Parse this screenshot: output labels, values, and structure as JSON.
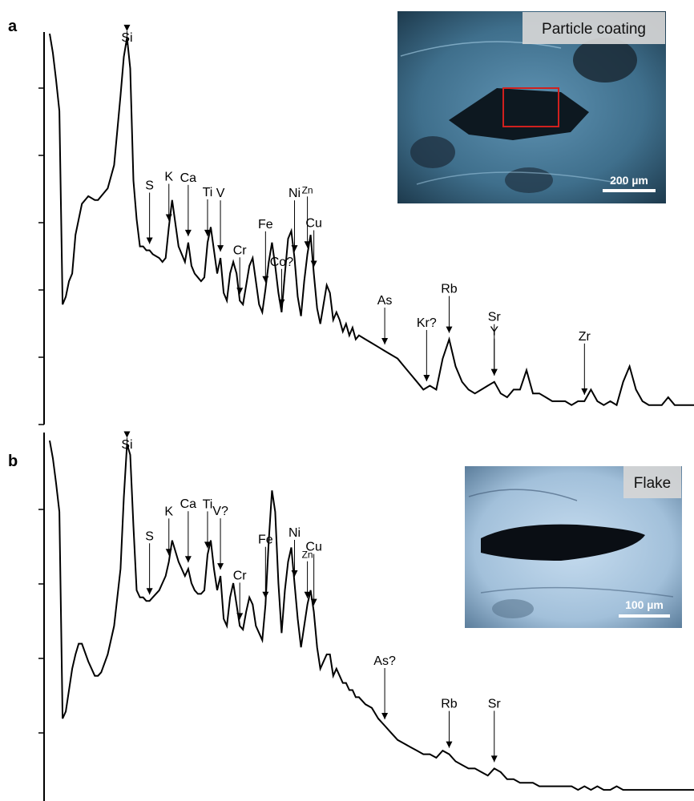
{
  "panels": {
    "a": {
      "letter": "a",
      "inset_title": "Particle coating",
      "scale_bar": "200 µm"
    },
    "b": {
      "letter": "b",
      "inset_title": "Flake",
      "scale_bar": "100 µm"
    }
  },
  "colors": {
    "spectrum": "#000000",
    "selection_box": "#d0201e",
    "inset_a_background": "#3f6f8c",
    "inset_b_background": "#a9c7e0",
    "label_box": "#d6d6d6"
  },
  "chart_data": [
    {
      "type": "line",
      "panel": "a",
      "title": "",
      "xlabel": "",
      "ylabel": "",
      "x_range": [
        0,
        100
      ],
      "y_range": [
        0,
        100
      ],
      "grid": false,
      "y_tick_marks": 6,
      "series": [
        {
          "x": [
            0,
            0.5,
            1,
            1.5,
            2,
            2.5,
            3,
            3.5,
            4,
            4.5,
            5,
            6,
            7,
            7.5,
            8,
            9,
            10,
            11,
            11.5,
            12,
            12.5,
            13,
            13.5,
            14,
            14.5,
            15,
            15.5,
            16,
            17,
            17.5,
            18,
            18.5,
            19,
            20,
            21,
            21.5,
            22,
            22.5,
            23,
            23.5,
            24,
            24.5,
            25,
            25.5,
            26,
            26.5,
            27,
            27.5,
            28,
            28.5,
            29,
            29.5,
            30,
            30.5,
            31,
            31.5,
            32,
            32.5,
            33,
            33.5,
            34,
            34.5,
            35,
            35.5,
            36,
            36.5,
            37,
            37.5,
            38,
            38.5,
            39,
            39.5,
            40,
            40.5,
            41,
            41.5,
            42,
            42.5,
            43,
            43.5,
            44,
            44.5,
            45,
            45.5,
            46,
            46.5,
            47,
            47.5,
            48,
            49,
            50,
            51,
            52,
            53,
            54,
            55,
            56,
            57,
            58,
            59,
            60,
            61,
            62,
            63,
            64,
            65,
            66,
            67,
            68,
            69,
            70,
            71,
            72,
            73,
            74,
            75,
            76,
            77,
            78,
            79,
            80,
            81,
            82,
            83,
            84,
            85,
            86,
            87,
            88,
            89,
            90,
            91,
            92,
            93,
            94,
            95,
            96,
            97,
            98,
            99,
            100
          ],
          "y": [
            100,
            95,
            88,
            80,
            30,
            32,
            36,
            38,
            48,
            52,
            56,
            58,
            57,
            57,
            58,
            60,
            66,
            84,
            94,
            99,
            91,
            62,
            52,
            45,
            45,
            44,
            44,
            43,
            42,
            41,
            42,
            50,
            57,
            45,
            41,
            46,
            40,
            38,
            37,
            36,
            37,
            46,
            50,
            44,
            38,
            42,
            33,
            31,
            38,
            41,
            38,
            31,
            30,
            35,
            40,
            42,
            36,
            30,
            28,
            34,
            41,
            46,
            40,
            33,
            28,
            38,
            47,
            49,
            42,
            32,
            27,
            36,
            43,
            48,
            38,
            29,
            25,
            30,
            35,
            33,
            26,
            28,
            26,
            23,
            25,
            22,
            24,
            21,
            22,
            21,
            20,
            19,
            18,
            17,
            16,
            14,
            12,
            10,
            8,
            9,
            8,
            16,
            21,
            14,
            10,
            8,
            7,
            8,
            9,
            10,
            7,
            6,
            8,
            8,
            13,
            7,
            7,
            6,
            5,
            5,
            5,
            4,
            5,
            5,
            8,
            5,
            4,
            5,
            4,
            10,
            14,
            8,
            5,
            4,
            4,
            4,
            6,
            4,
            4,
            4,
            4
          ]
        }
      ],
      "annotations": [
        {
          "label": "Si",
          "x": 12.0
        },
        {
          "label": "S",
          "x": 15.5
        },
        {
          "label": "K",
          "x": 18.5
        },
        {
          "label": "Ca",
          "x": 21.5
        },
        {
          "label": "Ti",
          "x": 24.5
        },
        {
          "label": "V",
          "x": 26.5
        },
        {
          "label": "Cr",
          "x": 29.5
        },
        {
          "label": "Fe",
          "x": 33.5
        },
        {
          "label": "Co?",
          "x": 36.0
        },
        {
          "label": "Ni",
          "x": 38.0
        },
        {
          "label": "Cu",
          "x": 41.0
        },
        {
          "label": "Zn",
          "x": 40.0
        },
        {
          "label": "As",
          "x": 52.0
        },
        {
          "label": "Kr?",
          "x": 58.5
        },
        {
          "label": "Rb",
          "x": 62.0
        },
        {
          "label": "Sr",
          "x": 69.0
        },
        {
          "label": "Y",
          "x": 69.0
        },
        {
          "label": "Zr",
          "x": 83.0
        }
      ]
    },
    {
      "type": "line",
      "panel": "b",
      "title": "",
      "xlabel": "",
      "ylabel": "",
      "x_range": [
        0,
        100
      ],
      "y_range": [
        0,
        100
      ],
      "grid": false,
      "y_tick_marks": 5,
      "series": [
        {
          "x": [
            0,
            0.5,
            1,
            1.5,
            2,
            2.5,
            3,
            3.5,
            4,
            4.5,
            5,
            6,
            7,
            7.5,
            8,
            9,
            10,
            11,
            11.5,
            12,
            12.5,
            13,
            13.5,
            14,
            14.5,
            15,
            15.5,
            16,
            17,
            17.5,
            18,
            18.5,
            19,
            20,
            21,
            21.5,
            22,
            22.5,
            23,
            23.5,
            24,
            24.5,
            25,
            25.5,
            26,
            26.5,
            27,
            27.5,
            28,
            28.5,
            29,
            29.5,
            30,
            30.5,
            31,
            31.5,
            32,
            32.5,
            33,
            33.5,
            34,
            34.5,
            35,
            35.5,
            36,
            36.5,
            37,
            37.5,
            38,
            38.5,
            39,
            39.5,
            40,
            40.5,
            41,
            41.5,
            42,
            42.5,
            43,
            43.5,
            44,
            44.5,
            45,
            45.5,
            46,
            46.5,
            47,
            47.5,
            48,
            49,
            50,
            51,
            52,
            53,
            54,
            55,
            56,
            57,
            58,
            59,
            60,
            61,
            62,
            63,
            64,
            65,
            66,
            67,
            68,
            69,
            70,
            71,
            72,
            73,
            74,
            75,
            76,
            77,
            78,
            79,
            80,
            81,
            82,
            83,
            84,
            85,
            86,
            87,
            88,
            89,
            90,
            91,
            92,
            93,
            94,
            95,
            96,
            97,
            98,
            99,
            100
          ],
          "y": [
            100,
            95,
            88,
            80,
            22,
            24,
            30,
            36,
            40,
            43,
            43,
            38,
            34,
            34,
            35,
            40,
            48,
            64,
            84,
            99,
            96,
            76,
            58,
            56,
            56,
            55,
            55,
            56,
            58,
            60,
            62,
            66,
            72,
            66,
            62,
            64,
            60,
            58,
            57,
            57,
            58,
            68,
            72,
            64,
            58,
            62,
            50,
            48,
            56,
            60,
            54,
            48,
            47,
            52,
            56,
            54,
            48,
            46,
            44,
            54,
            72,
            86,
            80,
            60,
            46,
            58,
            66,
            70,
            60,
            50,
            42,
            48,
            54,
            58,
            52,
            42,
            36,
            38,
            40,
            40,
            34,
            36,
            34,
            32,
            32,
            30,
            30,
            28,
            28,
            26,
            25,
            22,
            20,
            18,
            16,
            15,
            14,
            13,
            12,
            12,
            11,
            13,
            12,
            10,
            9,
            8,
            8,
            7,
            6,
            8,
            7,
            5,
            5,
            4,
            4,
            4,
            3,
            3,
            3,
            3,
            3,
            3,
            2,
            3,
            2,
            3,
            2,
            2,
            3,
            2,
            2,
            2,
            2,
            2,
            2,
            2,
            2,
            2,
            2,
            2,
            2
          ]
        }
      ],
      "annotations": [
        {
          "label": "Si",
          "x": 12.0
        },
        {
          "label": "S",
          "x": 15.5
        },
        {
          "label": "K",
          "x": 18.5
        },
        {
          "label": "Ca",
          "x": 21.5
        },
        {
          "label": "Ti",
          "x": 24.5
        },
        {
          "label": "V?",
          "x": 26.5
        },
        {
          "label": "Cr",
          "x": 29.5
        },
        {
          "label": "Fe",
          "x": 33.5
        },
        {
          "label": "Ni",
          "x": 38.0
        },
        {
          "label": "Cu",
          "x": 41.0
        },
        {
          "label": "Zn",
          "x": 40.0
        },
        {
          "label": "As?",
          "x": 52.0
        },
        {
          "label": "Rb",
          "x": 62.0
        },
        {
          "label": "Sr",
          "x": 69.0
        }
      ]
    }
  ]
}
